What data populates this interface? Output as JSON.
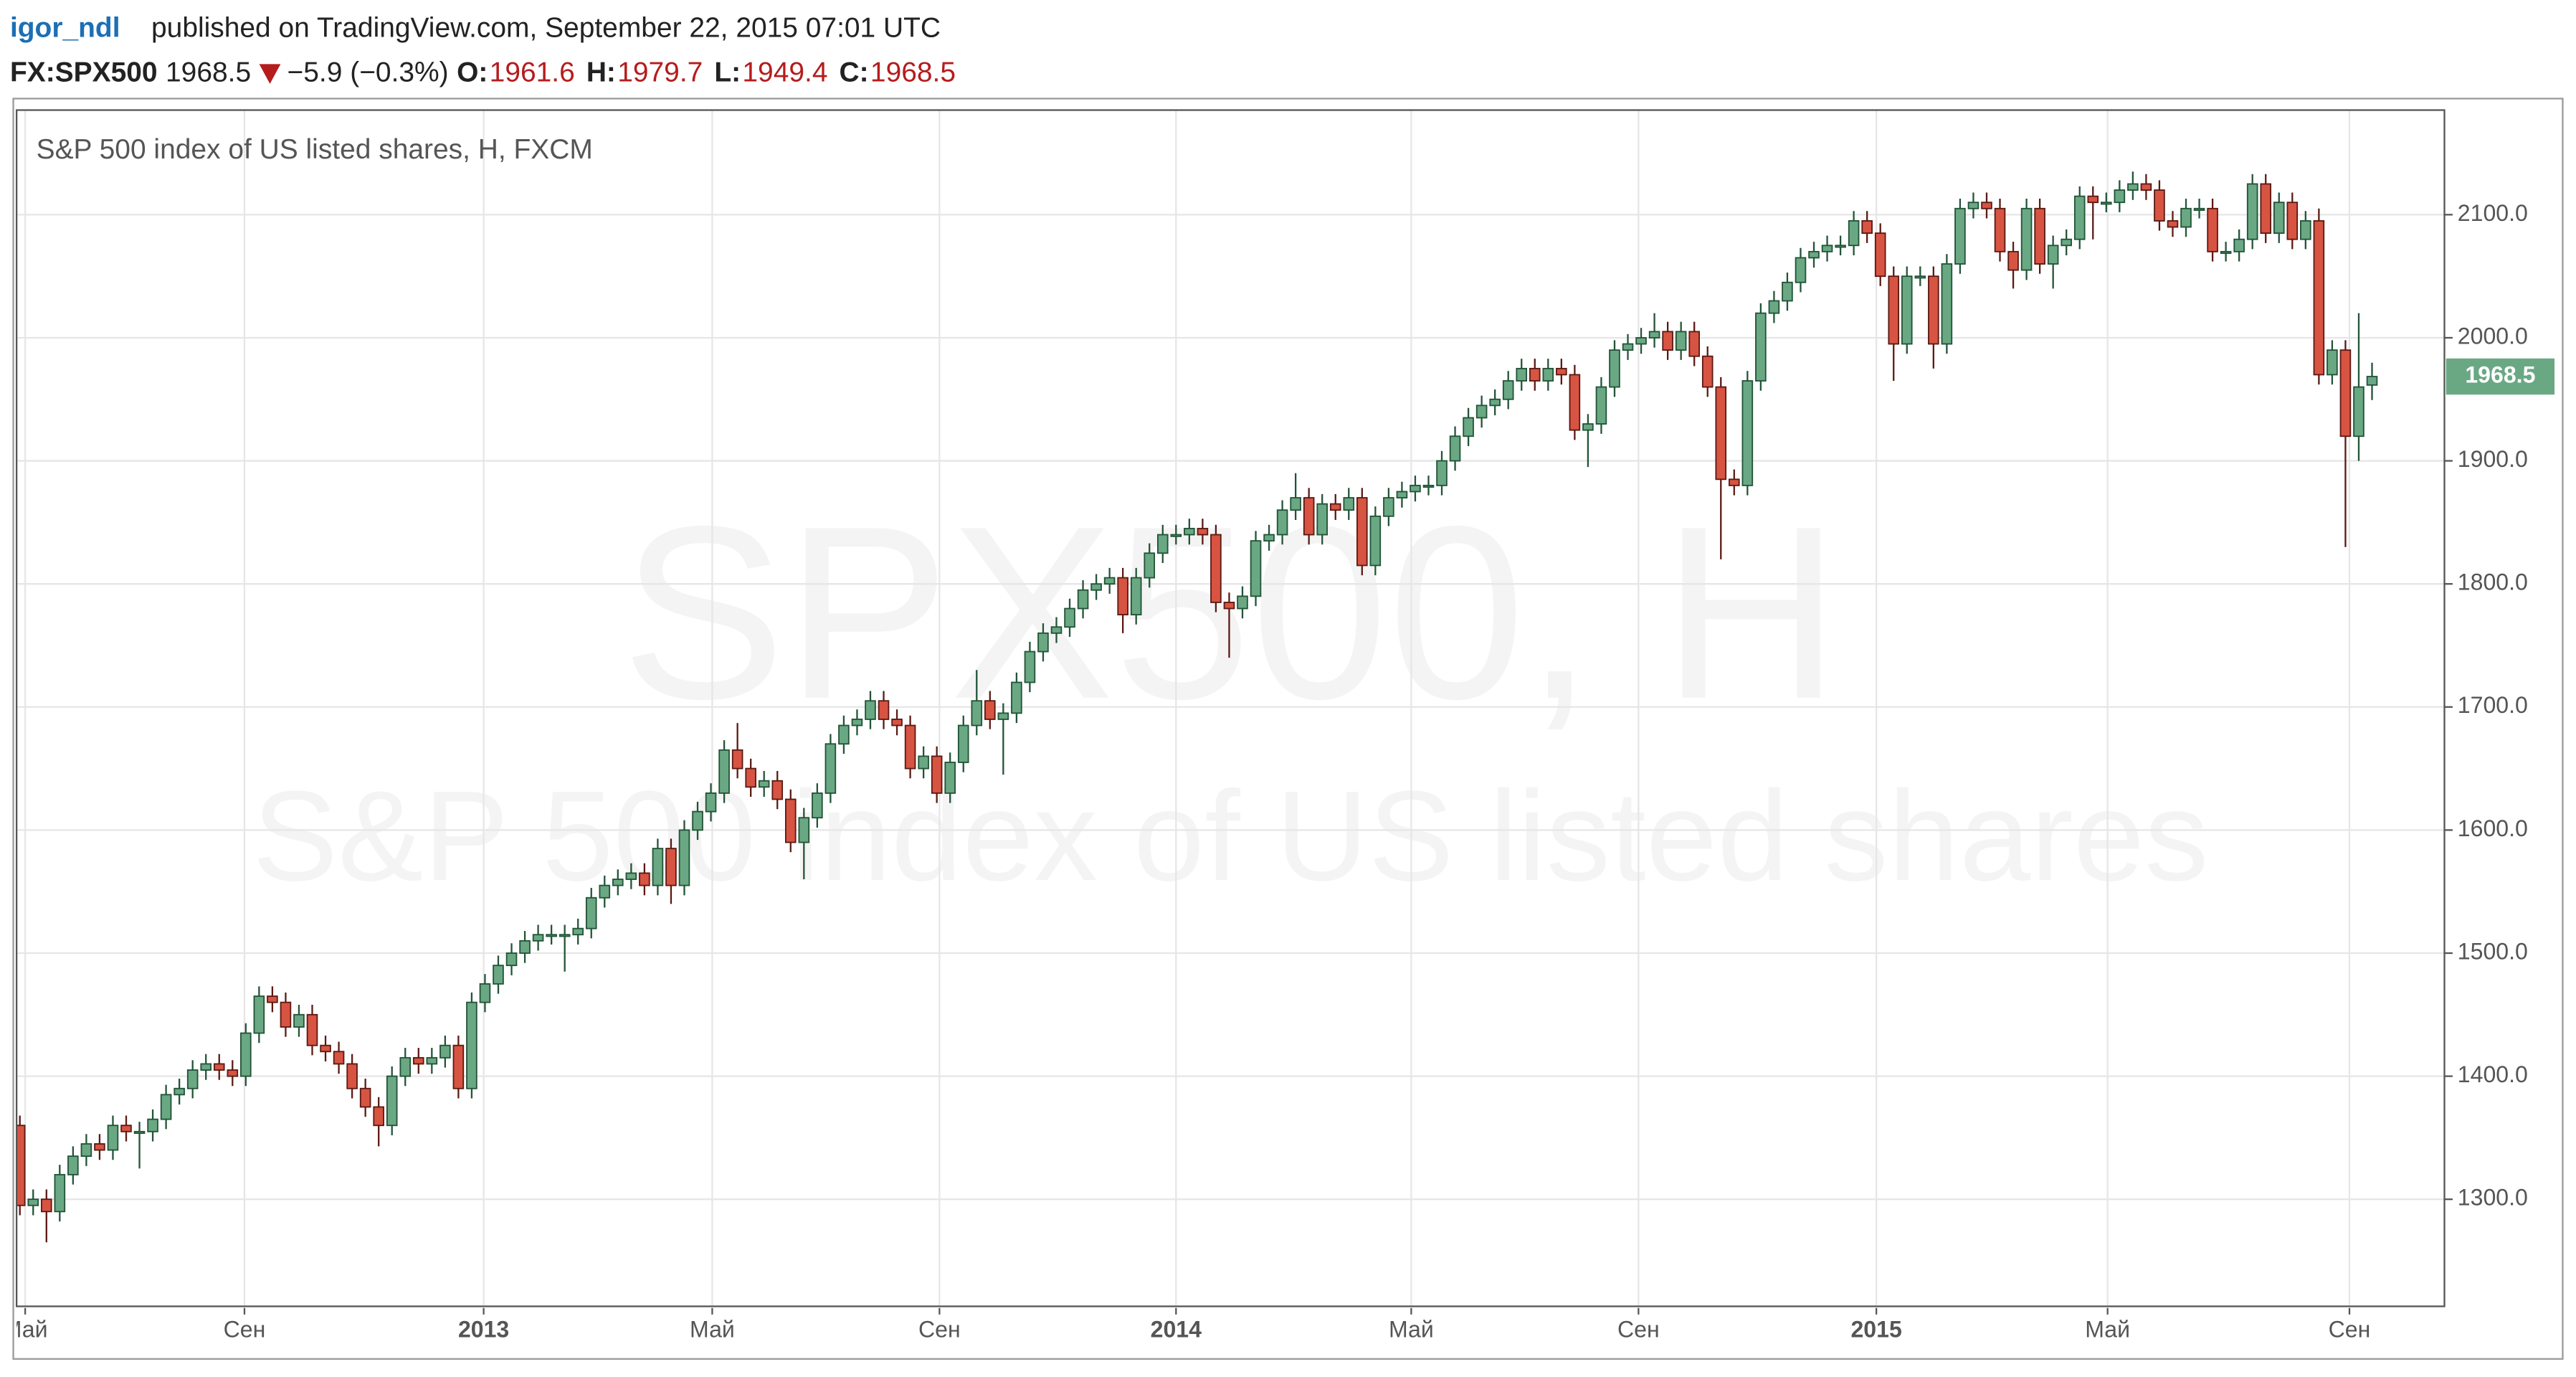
{
  "header": {
    "user": "igor_ndl",
    "published": "published on TradingView.com, September 22, 2015 07:01 UTC",
    "symbol": "FX:SPX500",
    "price": 1968.5,
    "change": "−5.9 (−0.3%)",
    "quote": [
      {
        "label": "O:",
        "value": 1961.6
      },
      {
        "label": "H:",
        "value": 1979.7
      },
      {
        "label": "L:",
        "value": 1949.4
      },
      {
        "label": "C:",
        "value": 1968.5
      }
    ]
  },
  "chart_data": {
    "type": "candlestick",
    "title": "S&P 500 index of US listed shares, H, FXCM",
    "watermark": [
      "SPX500, H",
      "S&P 500 index of US listed shares"
    ],
    "up_color": "#6aa884",
    "down_color": "#d75442",
    "up_border": "#225437",
    "down_border": "#5b1a13",
    "grid": true,
    "last_price": 1968.5,
    "ylim": [
      1213,
      2185
    ],
    "yticks": [
      {
        "value": 1300,
        "label": "1300.0"
      },
      {
        "value": 1400,
        "label": "1400.0"
      },
      {
        "value": 1500,
        "label": "1500.0"
      },
      {
        "value": 1600,
        "label": "1600.0"
      },
      {
        "value": 1700,
        "label": "1700.0"
      },
      {
        "value": 1800,
        "label": "1800.0"
      },
      {
        "value": 1900,
        "label": "1900.0"
      },
      {
        "value": 2000,
        "label": "2000.0"
      },
      {
        "value": 2100,
        "label": "2100.0"
      }
    ],
    "xticks": [
      {
        "value": 0.4,
        "label": "Май"
      },
      {
        "value": 16.9,
        "label": "Сен"
      },
      {
        "value": 34.9,
        "label": "2013"
      },
      {
        "value": 52.1,
        "label": "Май"
      },
      {
        "value": 69.2,
        "label": "Сен"
      },
      {
        "value": 87,
        "label": "2014"
      },
      {
        "value": 104.7,
        "label": "Май"
      },
      {
        "value": 121.8,
        "label": "Сен"
      },
      {
        "value": 139.7,
        "label": "2015"
      },
      {
        "value": 157.1,
        "label": "Май"
      },
      {
        "value": 175.3,
        "label": "Сен"
      }
    ],
    "categories": [
      null,
      null,
      null,
      null,
      null,
      null,
      null,
      null,
      null,
      null,
      null,
      null,
      null,
      null,
      null,
      null,
      null,
      null,
      null,
      null,
      null,
      null,
      null,
      null,
      null,
      null,
      null,
      null,
      null,
      null,
      null,
      null,
      null,
      null,
      null,
      null,
      null,
      null,
      null,
      null,
      null,
      null,
      null,
      null,
      null,
      null,
      null,
      null,
      null,
      null,
      null,
      null,
      null,
      null,
      null,
      null,
      null,
      null,
      null,
      null,
      null,
      null,
      null,
      null,
      null,
      null,
      null,
      null,
      null,
      null,
      null,
      null,
      null,
      null,
      null,
      null,
      null,
      null,
      null,
      null,
      null,
      null,
      null,
      null,
      null,
      null,
      null,
      null,
      null,
      null,
      null,
      null,
      null,
      null,
      null,
      null,
      null,
      null,
      null,
      null,
      null,
      null,
      null,
      null,
      null,
      null,
      null,
      null,
      null,
      null,
      null,
      null,
      null,
      null,
      null,
      null,
      null,
      null,
      null,
      null,
      null,
      null,
      null,
      null,
      null,
      null,
      null,
      null,
      null,
      null,
      null,
      null,
      null,
      null,
      null,
      null,
      null,
      null,
      null,
      null,
      null,
      null,
      null,
      null,
      null,
      null,
      null,
      null,
      null,
      null,
      null,
      null,
      null,
      null,
      null,
      null,
      null,
      null,
      null,
      null,
      null,
      null,
      null,
      null,
      null,
      null,
      null,
      null,
      null,
      null,
      null,
      null,
      null,
      null,
      null,
      null,
      null,
      null
    ],
    "open": [
      1360,
      1295,
      1300,
      1290,
      1320,
      1335,
      1345,
      1340,
      1360,
      1355,
      1355,
      1365,
      1385,
      1390,
      1405,
      1410,
      1405,
      1400,
      1435,
      1465,
      1460,
      1440,
      1450,
      1425,
      1420,
      1410,
      1390,
      1375,
      1360,
      1400,
      1415,
      1410,
      1415,
      1425,
      1390,
      1460,
      1475,
      1490,
      1500,
      1510,
      1515,
      1515,
      1515,
      1520,
      1545,
      1555,
      1560,
      1565,
      1555,
      1585,
      1555,
      1600,
      1615,
      1630,
      1665,
      1650,
      1635,
      1640,
      1625,
      1590,
      1610,
      1630,
      1670,
      1685,
      1690,
      1705,
      1690,
      1685,
      1650,
      1660,
      1630,
      1655,
      1685,
      1705,
      1690,
      1695,
      1720,
      1745,
      1760,
      1765,
      1780,
      1795,
      1800,
      1805,
      1775,
      1805,
      1825,
      1840,
      1840,
      1845,
      1840,
      1785,
      1780,
      1790,
      1835,
      1840,
      1860,
      1870,
      1840,
      1865,
      1860,
      1870,
      1815,
      1855,
      1870,
      1875,
      1880,
      1880,
      1900,
      1920,
      1935,
      1945,
      1950,
      1965,
      1975,
      1965,
      1975,
      1970,
      1925,
      1930,
      1960,
      1990,
      1995,
      2000,
      2005,
      1990,
      2005,
      1985,
      1960,
      1885,
      1880,
      1965,
      2020,
      2030,
      2045,
      2065,
      2070,
      2075,
      2075,
      2095,
      2085,
      2050,
      1995,
      2050,
      2050,
      1995,
      2060,
      2105,
      2110,
      2105,
      2070,
      2055,
      2105,
      2060,
      2075,
      2080,
      2115,
      2110,
      2110,
      2120,
      2125,
      2120,
      2095,
      2090,
      2105,
      2105,
      2070,
      2070,
      2080,
      2125,
      2085,
      2110,
      2080,
      2095,
      1970,
      1990,
      1920,
      1961.6
    ],
    "high": [
      1368,
      1308,
      1308,
      1328,
      1343,
      1353,
      1353,
      1368,
      1368,
      1363,
      1373,
      1393,
      1398,
      1413,
      1418,
      1418,
      1413,
      1443,
      1473,
      1473,
      1468,
      1458,
      1458,
      1433,
      1428,
      1418,
      1398,
      1383,
      1408,
      1423,
      1423,
      1423,
      1433,
      1433,
      1468,
      1483,
      1498,
      1508,
      1518,
      1523,
      1523,
      1523,
      1528,
      1553,
      1563,
      1568,
      1573,
      1573,
      1593,
      1593,
      1608,
      1623,
      1638,
      1673,
      1687,
      1658,
      1648,
      1648,
      1633,
      1618,
      1638,
      1678,
      1693,
      1698,
      1713,
      1713,
      1698,
      1693,
      1668,
      1668,
      1663,
      1693,
      1730,
      1713,
      1703,
      1728,
      1753,
      1768,
      1773,
      1788,
      1803,
      1808,
      1813,
      1813,
      1813,
      1833,
      1848,
      1848,
      1853,
      1853,
      1848,
      1793,
      1798,
      1843,
      1848,
      1868,
      1890,
      1878,
      1873,
      1873,
      1878,
      1878,
      1863,
      1878,
      1883,
      1888,
      1888,
      1908,
      1928,
      1943,
      1953,
      1958,
      1973,
      1983,
      1983,
      1983,
      1983,
      1978,
      1938,
      1968,
      1998,
      2003,
      2008,
      2020,
      2013,
      2013,
      2013,
      1993,
      1968,
      1893,
      1973,
      2028,
      2038,
      2053,
      2073,
      2078,
      2083,
      2083,
      2103,
      2103,
      2093,
      2058,
      2058,
      2058,
      2058,
      2068,
      2113,
      2118,
      2118,
      2113,
      2078,
      2113,
      2113,
      2083,
      2088,
      2123,
      2123,
      2118,
      2128,
      2135,
      2133,
      2128,
      2103,
      2113,
      2113,
      2113,
      2078,
      2088,
      2133,
      2133,
      2118,
      2118,
      2103,
      2105,
      1998,
      1998,
      2020,
      1979.7
    ],
    "low": [
      1287,
      1287,
      1265,
      1282,
      1312,
      1327,
      1332,
      1332,
      1347,
      1325,
      1347,
      1357,
      1377,
      1382,
      1397,
      1397,
      1392,
      1392,
      1427,
      1452,
      1432,
      1432,
      1417,
      1412,
      1402,
      1382,
      1367,
      1343,
      1352,
      1392,
      1402,
      1402,
      1407,
      1382,
      1382,
      1452,
      1467,
      1482,
      1492,
      1502,
      1507,
      1485,
      1507,
      1512,
      1537,
      1547,
      1552,
      1547,
      1547,
      1540,
      1547,
      1592,
      1607,
      1622,
      1642,
      1627,
      1627,
      1617,
      1582,
      1560,
      1602,
      1622,
      1662,
      1677,
      1682,
      1682,
      1677,
      1642,
      1642,
      1622,
      1622,
      1647,
      1677,
      1682,
      1645,
      1687,
      1712,
      1737,
      1752,
      1757,
      1772,
      1787,
      1792,
      1760,
      1767,
      1797,
      1817,
      1832,
      1832,
      1832,
      1777,
      1740,
      1772,
      1782,
      1827,
      1832,
      1852,
      1832,
      1832,
      1852,
      1852,
      1807,
      1807,
      1847,
      1862,
      1867,
      1872,
      1872,
      1892,
      1912,
      1927,
      1937,
      1942,
      1957,
      1957,
      1957,
      1962,
      1917,
      1895,
      1922,
      1952,
      1982,
      1987,
      1992,
      1982,
      1982,
      1977,
      1952,
      1820,
      1872,
      1872,
      1957,
      2012,
      2022,
      2037,
      2057,
      2062,
      2067,
      2067,
      2077,
      2042,
      1965,
      1987,
      2042,
      1975,
      1987,
      2052,
      2097,
      2097,
      2062,
      2040,
      2047,
      2052,
      2040,
      2067,
      2072,
      2080,
      2102,
      2102,
      2112,
      2112,
      2087,
      2082,
      2082,
      2097,
      2062,
      2062,
      2062,
      2072,
      2077,
      2077,
      2072,
      2072,
      1962,
      1962,
      1830,
      1900,
      1949.4
    ],
    "close": [
      1295,
      1300,
      1290,
      1320,
      1335,
      1345,
      1340,
      1360,
      1355,
      1355,
      1365,
      1385,
      1390,
      1405,
      1410,
      1405,
      1400,
      1435,
      1465,
      1460,
      1440,
      1450,
      1425,
      1420,
      1410,
      1390,
      1375,
      1360,
      1400,
      1415,
      1410,
      1415,
      1425,
      1390,
      1460,
      1475,
      1490,
      1500,
      1510,
      1515,
      1515,
      1515,
      1520,
      1545,
      1555,
      1560,
      1565,
      1555,
      1585,
      1555,
      1600,
      1615,
      1630,
      1665,
      1650,
      1635,
      1640,
      1625,
      1590,
      1610,
      1630,
      1670,
      1685,
      1690,
      1705,
      1690,
      1685,
      1650,
      1660,
      1630,
      1655,
      1685,
      1705,
      1690,
      1695,
      1720,
      1745,
      1760,
      1765,
      1780,
      1795,
      1800,
      1805,
      1775,
      1805,
      1825,
      1840,
      1840,
      1845,
      1840,
      1785,
      1780,
      1790,
      1835,
      1840,
      1860,
      1870,
      1840,
      1865,
      1860,
      1870,
      1815,
      1855,
      1870,
      1875,
      1880,
      1880,
      1900,
      1920,
      1935,
      1945,
      1950,
      1965,
      1975,
      1965,
      1975,
      1970,
      1925,
      1930,
      1960,
      1990,
      1995,
      2000,
      2005,
      1990,
      2005,
      1985,
      1960,
      1885,
      1880,
      1965,
      2020,
      2030,
      2045,
      2065,
      2070,
      2075,
      2075,
      2095,
      2085,
      2050,
      1995,
      2050,
      2050,
      1995,
      2060,
      2105,
      2110,
      2105,
      2070,
      2055,
      2105,
      2060,
      2075,
      2080,
      2115,
      2110,
      2110,
      2120,
      2125,
      2120,
      2095,
      2090,
      2105,
      2105,
      2070,
      2070,
      2080,
      2125,
      2085,
      2110,
      2080,
      2095,
      1970,
      1990,
      1920,
      1960,
      1968.5
    ]
  }
}
